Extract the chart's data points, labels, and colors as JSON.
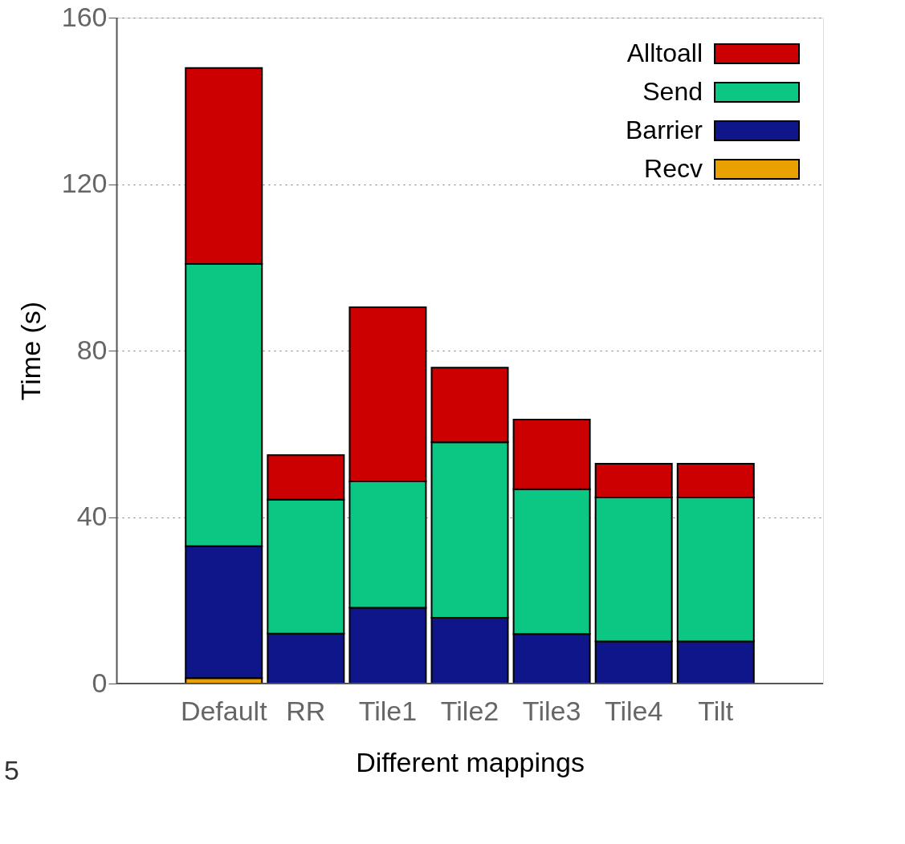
{
  "chart_data": {
    "type": "bar",
    "stacked": true,
    "xlabel": "Different mappings",
    "ylabel": "Time (s)",
    "categories": [
      "Default",
      "RR",
      "Tile1",
      "Tile2",
      "Tile3",
      "Tile4",
      "Tilt"
    ],
    "series": [
      {
        "name": "Recv",
        "color": "#e8a100",
        "values": [
          1.3,
          null,
          null,
          null,
          null,
          null,
          null
        ]
      },
      {
        "name": "Barrier",
        "color": "#0f168a",
        "values": [
          31.7,
          12.0,
          18.2,
          15.8,
          11.9,
          10.1,
          10.1
        ]
      },
      {
        "name": "Send",
        "color": "#0cc784",
        "values": [
          67.8,
          32.2,
          30.4,
          42.2,
          34.8,
          34.6,
          34.6
        ]
      },
      {
        "name": "Alltoall",
        "color": "#cc0000",
        "values": [
          47.1,
          10.7,
          41.8,
          17.9,
          16.7,
          8.1,
          8.1
        ]
      }
    ],
    "ylim": [
      0,
      160
    ],
    "yticks": [
      0,
      40,
      80,
      120,
      160
    ],
    "grid": "y",
    "legend": "top right",
    "annotations": [
      "5"
    ]
  }
}
